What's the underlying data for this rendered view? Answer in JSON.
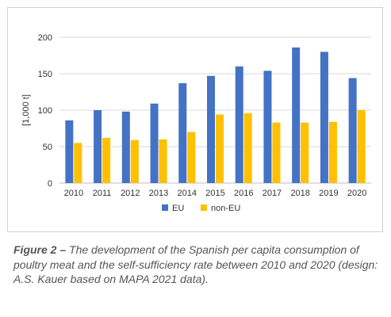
{
  "chart_data": {
    "type": "bar",
    "categories": [
      "2010",
      "2011",
      "2012",
      "2013",
      "2014",
      "2015",
      "2016",
      "2017",
      "2018",
      "2019",
      "2020"
    ],
    "series": [
      {
        "name": "EU",
        "color": "#4472c4",
        "values": [
          86,
          100,
          98,
          109,
          137,
          147,
          160,
          154,
          186,
          180,
          144
        ]
      },
      {
        "name": "non-EU",
        "color": "#ffc000",
        "values": [
          55,
          62,
          59,
          60,
          70,
          94,
          96,
          83,
          83,
          84,
          100
        ]
      }
    ],
    "ylabel": "[1,000 t]",
    "ylim": [
      0,
      200
    ],
    "yticks": [
      0,
      50,
      100,
      150,
      200
    ],
    "grid": true,
    "legend": "bottom"
  },
  "caption": {
    "label": "Figure 2 –",
    "text": "The development of the Spanish per capita consumption of poultry meat and the self-sufficiency rate between 2010 and 2020 (design: A.S. Kauer based on MAPA 2021 data)."
  }
}
